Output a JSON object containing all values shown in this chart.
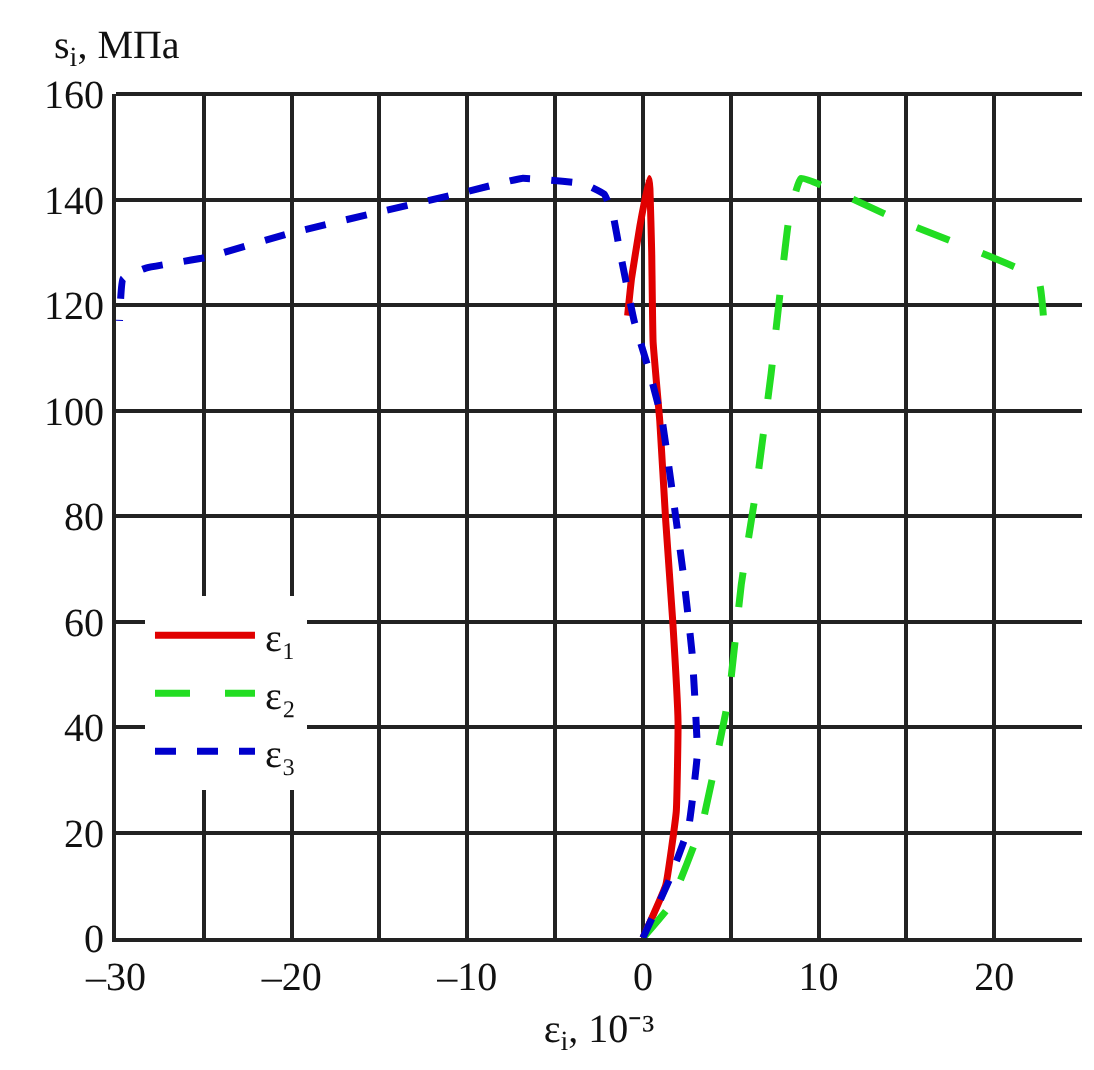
{
  "chart_data": {
    "type": "line",
    "xlabel": "ε$_{i}$, 10⁻³",
    "ylabel": "s$_{i}$, МПа",
    "xlim": [
      -30,
      25
    ],
    "ylim": [
      0,
      160
    ],
    "xticks": [
      {
        "value": -30,
        "label": "–30"
      },
      {
        "value": -25,
        "label": null
      },
      {
        "value": -20,
        "label": "–20"
      },
      {
        "value": -15,
        "label": null
      },
      {
        "value": -10,
        "label": "–10"
      },
      {
        "value": -5,
        "label": null
      },
      0,
      {
        "value": 5,
        "label": null
      },
      10,
      {
        "value": 15,
        "label": null
      },
      20
    ],
    "yticks": [
      0,
      20,
      40,
      60,
      80,
      100,
      120,
      140,
      160
    ],
    "grid": true,
    "legend": "bottom left",
    "marker": "none",
    "series": [
      {
        "name": "ε₁",
        "color": "#e00000",
        "line_style": "solid",
        "x": [
          0,
          1.3,
          1.9,
          2.0,
          1.7,
          1.3,
          0.96,
          0.58,
          0.5,
          0.4,
          0.35,
          -0.17,
          -0.65,
          -0.87
        ],
        "values": [
          0,
          10,
          24,
          41,
          60,
          79,
          98,
          113,
          130,
          142,
          144,
          135,
          125,
          118
        ]
      },
      {
        "name": "ε₂",
        "color": "#22dd22",
        "line_style": "dashed",
        "x": [
          0,
          1.5,
          3.4,
          4.9,
          5.6,
          6.4,
          7.3,
          8.3,
          9.0,
          14.6,
          22.5,
          22.8
        ],
        "values": [
          0,
          6,
          22,
          46,
          67,
          84,
          107,
          136,
          144,
          136,
          125,
          118
        ]
      },
      {
        "name": "ε₃",
        "color": "#0000cc",
        "line_style": "dotted",
        "x": [
          0,
          1.5,
          2.6,
          3.1,
          2.8,
          2.3,
          1.7,
          1.1,
          0.4,
          -0.5,
          -1.3,
          -1.7,
          -2.2,
          -3.4,
          -6.9,
          -10,
          -15.2,
          -20.2,
          -24.9,
          -28.3,
          -29.6,
          -29.8
        ],
        "values": [
          0,
          11,
          21,
          35,
          54,
          69,
          84,
          98,
          107,
          117,
          130,
          137,
          141,
          143,
          144,
          141.5,
          137.5,
          133.5,
          129,
          127,
          125,
          117
        ]
      }
    ]
  }
}
